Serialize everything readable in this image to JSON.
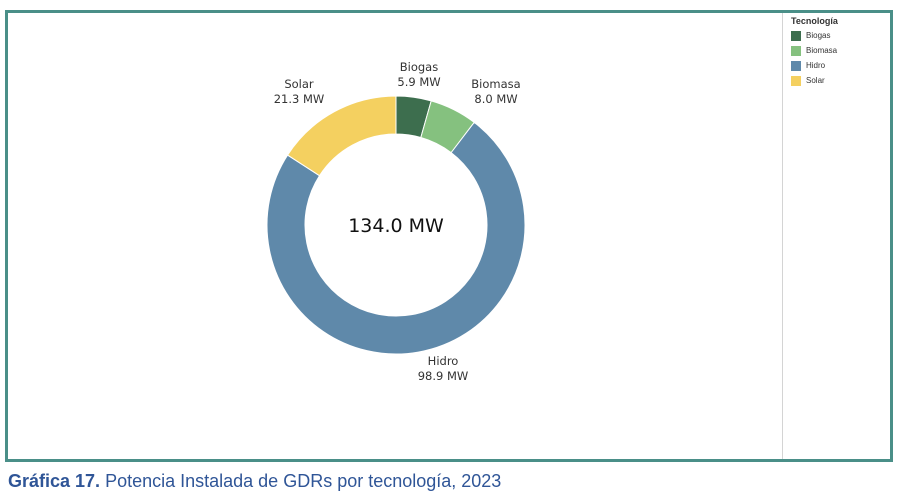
{
  "chart_data": {
    "type": "pie",
    "donut": true,
    "total_label": "134.0 MW",
    "unit": "MW",
    "categories": [
      "Biogas",
      "Biomasa",
      "Hidro",
      "Solar"
    ],
    "values": [
      5.9,
      8.0,
      98.9,
      21.3
    ],
    "value_labels": [
      "5.9 MW",
      "8.0 MW",
      "98.9 MW",
      "21.3 MW"
    ],
    "legend_title": "Tecnología",
    "legend_placement": "top-right",
    "colors": [
      "#3d6e4e",
      "#85c17f",
      "#5f89aa",
      "#f4d060"
    ]
  },
  "caption": {
    "number": "Gráfica 17.",
    "text": " Potencia Instalada de GDRs por tecnología, 2023"
  }
}
